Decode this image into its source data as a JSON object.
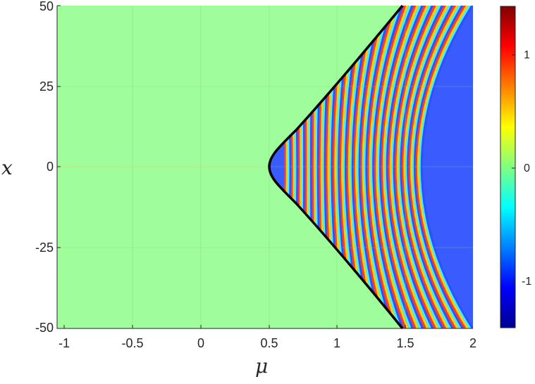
{
  "chart_data": {
    "type": "heatmap",
    "title": "",
    "xlabel": "μ",
    "ylabel": "x",
    "xlim": [
      -1,
      2
    ],
    "ylim": [
      -50,
      50
    ],
    "x_ticks": [
      "-1",
      "-0.5",
      "0",
      "0.5",
      "1",
      "1.5",
      "2"
    ],
    "y_ticks": [
      "50",
      "25",
      "0",
      "-25",
      "-50"
    ],
    "grid": true,
    "colormap": "jet",
    "colorbar": {
      "position": "right",
      "range": [
        -1.4,
        1.4
      ],
      "ticks": [
        "1",
        "0",
        "-1"
      ]
    },
    "background_value": 0,
    "boundary_curve": {
      "color": "#000000",
      "description": "hyperbola-like black curve with vertex at μ≈0.5, x=0, reaching μ≈1.5 at x=±50",
      "points": [
        {
          "mu": 1.5,
          "x": 50
        },
        {
          "mu": 1.2,
          "x": 35
        },
        {
          "mu": 0.9,
          "x": 20
        },
        {
          "mu": 0.65,
          "x": 10
        },
        {
          "mu": 0.5,
          "x": 0
        },
        {
          "mu": 0.65,
          "x": -10
        },
        {
          "mu": 0.9,
          "x": -20
        },
        {
          "mu": 1.2,
          "x": -35
        },
        {
          "mu": 1.5,
          "x": -50
        }
      ]
    },
    "annotations": [
      "oscillatory fringes (values ≈ ±1.4) to the right of the curve",
      "value ≈ 0 (green) to the left of the curve"
    ]
  },
  "colors": {
    "background_fill": "#9ffd9c",
    "curve": "#000000",
    "axis": "#262626"
  }
}
